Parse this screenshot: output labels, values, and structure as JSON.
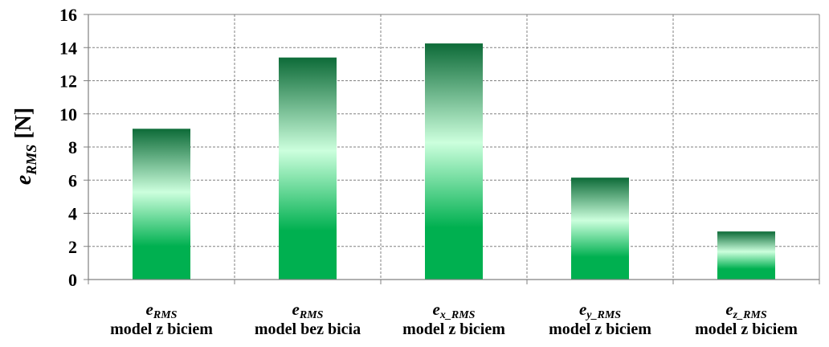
{
  "chart_data": {
    "type": "bar",
    "title": "",
    "ylabel": {
      "symbol": "e",
      "subscript": "RMS",
      "unit": "[N]"
    },
    "xlabel": "",
    "ylim": [
      0,
      16
    ],
    "yticks": [
      0,
      2,
      4,
      6,
      8,
      10,
      12,
      14,
      16
    ],
    "grid": true,
    "legend": "none",
    "categories": [
      {
        "symbol": "e",
        "subscript": "RMS",
        "description": "model z biciem"
      },
      {
        "symbol": "e",
        "subscript": "RMS",
        "description": "model bez bicia"
      },
      {
        "symbol": "e",
        "subscript": "x_RMS",
        "description": "model z biciem"
      },
      {
        "symbol": "e",
        "subscript": "y_RMS",
        "description": "model z biciem"
      },
      {
        "symbol": "e",
        "subscript": "z_RMS",
        "description": "model z biciem"
      }
    ],
    "values": [
      9.1,
      13.4,
      14.25,
      6.15,
      2.9
    ],
    "colors": {
      "bar_dark": "#0d6b38",
      "bar_light": "#ccffdd",
      "bar_base": "#00b050",
      "grid": "#808080",
      "axis": "#808080"
    }
  }
}
